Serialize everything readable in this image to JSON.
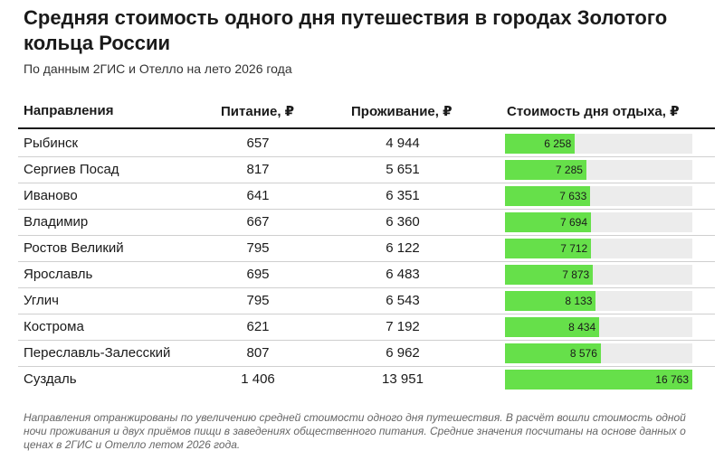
{
  "title": "Средняя стоимость одного дня путешествия в городах Золотого кольца России",
  "subtitle": "По данным 2ГИС и Отелло на лето 2026 года",
  "table": {
    "headers": {
      "name": "Направления",
      "food": "Питание, ₽",
      "stay": "Проживание, ₽",
      "total": "Стоимость дня отдыха, ₽"
    }
  },
  "chart_data": {
    "type": "table",
    "columns": [
      "Направления",
      "Питание, ₽",
      "Проживание, ₽",
      "Стоимость дня отдыха, ₽"
    ],
    "bar_scale_max": 16763,
    "rows": [
      {
        "name": "Рыбинск",
        "food": "657",
        "stay": "4 944",
        "total": "6 258",
        "total_value": 6258
      },
      {
        "name": "Сергиев Посад",
        "food": "817",
        "stay": "5 651",
        "total": "7 285",
        "total_value": 7285
      },
      {
        "name": "Иваново",
        "food": "641",
        "stay": "6 351",
        "total": "7 633",
        "total_value": 7633
      },
      {
        "name": "Владимир",
        "food": "667",
        "stay": "6 360",
        "total": "7 694",
        "total_value": 7694
      },
      {
        "name": "Ростов Великий",
        "food": "795",
        "stay": "6 122",
        "total": "7 712",
        "total_value": 7712
      },
      {
        "name": "Ярославль",
        "food": "695",
        "stay": "6 483",
        "total": "7 873",
        "total_value": 7873
      },
      {
        "name": "Углич",
        "food": "795",
        "stay": "6 543",
        "total": "8 133",
        "total_value": 8133
      },
      {
        "name": "Кострома",
        "food": "621",
        "stay": "7 192",
        "total": "8 434",
        "total_value": 8434
      },
      {
        "name": "Переславль-Залесский",
        "food": "807",
        "stay": "6 962",
        "total": "8 576",
        "total_value": 8576
      },
      {
        "name": "Суздаль",
        "food": "1 406",
        "stay": "13 951",
        "total": "16 763",
        "total_value": 16763
      }
    ],
    "colors": {
      "bar": "#66e04a",
      "track": "#ececec"
    }
  },
  "footnote": "Направления отранжированы по увеличению средней стоимости одного дня путешествия. В расчёт вошли стоимость одной ночи проживания и двух приёмов пищи в заведениях общественного питания. Средние значения посчитаны на основе данных о ценах в 2ГИС и Отелло летом 2026 года."
}
